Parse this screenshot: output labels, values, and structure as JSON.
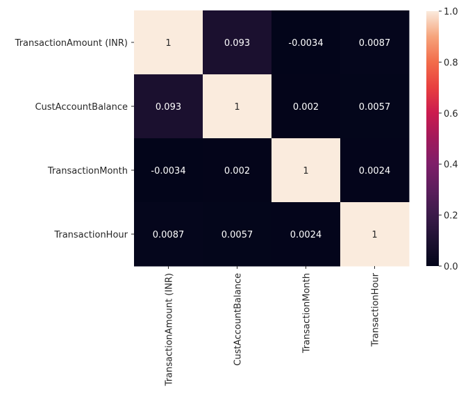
{
  "chart_data": {
    "type": "heatmap",
    "row_labels": [
      "TransactionAmount (INR)",
      "CustAccountBalance",
      "TransactionMonth",
      "TransactionHour"
    ],
    "col_labels": [
      "TransactionAmount (INR)",
      "CustAccountBalance",
      "TransactionMonth",
      "TransactionHour"
    ],
    "values": [
      [
        1,
        0.093,
        -0.0034,
        0.0087
      ],
      [
        0.093,
        1,
        0.002,
        0.0057
      ],
      [
        -0.0034,
        0.002,
        1,
        0.0024
      ],
      [
        0.0087,
        0.0057,
        0.0024,
        1
      ]
    ],
    "annotations": [
      [
        "1",
        "0.093",
        "-0.0034",
        "0.0087"
      ],
      [
        "0.093",
        "1",
        "0.002",
        "0.0057"
      ],
      [
        "-0.0034",
        "0.002",
        "1",
        "0.0024"
      ],
      [
        "0.0087",
        "0.0057",
        "0.0024",
        "1"
      ]
    ],
    "colorbar": {
      "range": [
        0.0,
        1.0
      ],
      "ticks": [
        0.0,
        0.2,
        0.4,
        0.6,
        0.8,
        1.0
      ],
      "tick_labels": [
        "0.0",
        "0.2",
        "0.4",
        "0.6",
        "0.8",
        "1.0"
      ],
      "colormap": "rocket"
    },
    "xlabel": "",
    "ylabel": "",
    "title": "",
    "grid": false,
    "colorbar_placement": "right"
  }
}
